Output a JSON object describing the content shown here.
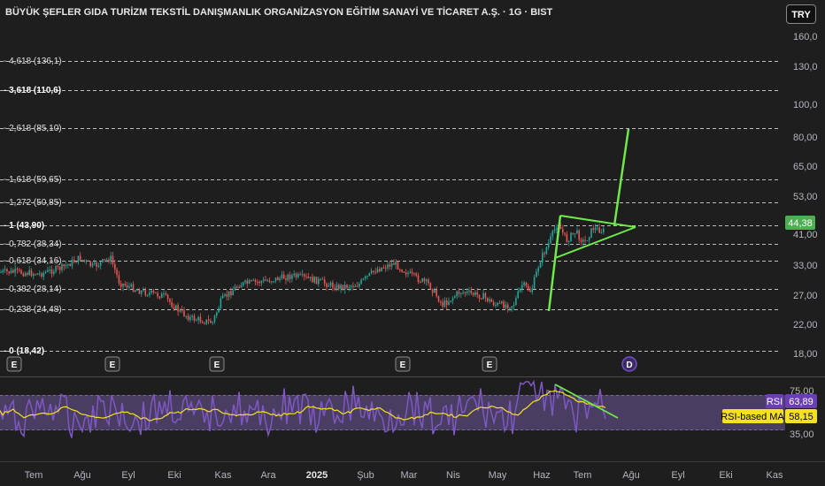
{
  "header": {
    "title": "BÜYÜK ŞEFLER GIDA TURİZM TEKSTİL DANIŞMANLIK ORGANİZASYON EĞİTİM SANAYİ VE TİCARET A.Ş. · 1G · BIST",
    "currency_button": "TRY"
  },
  "price_axis": {
    "labels": [
      "160,0",
      "130,0",
      "100,0",
      "80,00",
      "65,00",
      "53,00",
      "41,00",
      "33,00",
      "27,00",
      "22,00",
      "18,00"
    ],
    "current_price": "44,38"
  },
  "fib_levels": [
    {
      "label": "4,618 (136,1)",
      "bold": false
    },
    {
      "label": "3,618 (110,6)",
      "bold": true
    },
    {
      "label": "2,618 (85,10)",
      "bold": false
    },
    {
      "label": "1,618 (59,65)",
      "bold": false
    },
    {
      "label": "1,272 (50,85)",
      "bold": false
    },
    {
      "label": "1 (43,90)",
      "bold": true
    },
    {
      "label": "0,782 (38,34)",
      "bold": false
    },
    {
      "label": "0,618 (34,16)",
      "bold": false
    },
    {
      "label": "0,382 (28,14)",
      "bold": false
    },
    {
      "label": "0,238 (24,48)",
      "bold": false
    },
    {
      "label": "0 (18,42)",
      "bold": true
    }
  ],
  "event_markers": [
    {
      "type": "E",
      "label": "E"
    },
    {
      "type": "E",
      "label": "E"
    },
    {
      "type": "E",
      "label": "E"
    },
    {
      "type": "E",
      "label": "E"
    },
    {
      "type": "E",
      "label": "E"
    },
    {
      "type": "D",
      "label": "D"
    }
  ],
  "rsi": {
    "axis_labels": [
      "75,00",
      "35,00"
    ],
    "rsi_name": "RSI",
    "rsi_value": "63,89",
    "ma_name": "RSI-based MA",
    "ma_value": "58,15"
  },
  "time_axis": {
    "months": [
      "Tem",
      "Ağu",
      "Eyl",
      "Eki",
      "Kas",
      "Ara",
      "2025",
      "Şub",
      "Mar",
      "Nis",
      "May",
      "Haz",
      "Tem",
      "Ağu",
      "Eyl",
      "Eki",
      "Kas"
    ]
  },
  "colors": {
    "up": "#26a69a",
    "down": "#ef5350",
    "drawing": "#6ee84a",
    "rsi_line": "#7e57c2",
    "rsi_band": "#6d5a9a",
    "rsi_ma": "#f5e11f",
    "price_tag": "#4caf50"
  },
  "chart_data": {
    "type": "candlestick",
    "price_scale": "log",
    "series": [
      {
        "name": "RSI",
        "last": 63.89
      },
      {
        "name": "RSI-based MA",
        "last": 58.15
      }
    ],
    "close_path": [
      [
        "2024-07",
        30.5
      ],
      [
        "2024-07-mid",
        31.5
      ],
      [
        "2024-08",
        32.5
      ],
      [
        "2024-08-mid",
        34.5
      ],
      [
        "2024-09",
        30.0
      ],
      [
        "2024-09-mid",
        28.5
      ],
      [
        "2024-10",
        27.0
      ],
      [
        "2024-10-mid",
        24.5
      ],
      [
        "2024-11",
        23.0
      ],
      [
        "2024-11-mid",
        25.5
      ],
      [
        "2024-12",
        28.0
      ],
      [
        "2024-12-mid",
        29.5
      ],
      [
        "2025-01",
        30.0
      ],
      [
        "2025-01-mid",
        29.0
      ],
      [
        "2025-02",
        28.5
      ],
      [
        "2025-02-mid",
        29.0
      ],
      [
        "2025-03",
        34.5
      ],
      [
        "2025-03-mid",
        30.0
      ],
      [
        "2025-04",
        26.5
      ],
      [
        "2025-04-mid",
        28.5
      ],
      [
        "2025-05",
        25.5
      ],
      [
        "2025-05-mid",
        25.0
      ],
      [
        "2025-06",
        30.0
      ],
      [
        "2025-06-mid",
        42.0
      ],
      [
        "2025-07",
        40.0
      ],
      [
        "2025-07-mid",
        44.38
      ]
    ]
  }
}
